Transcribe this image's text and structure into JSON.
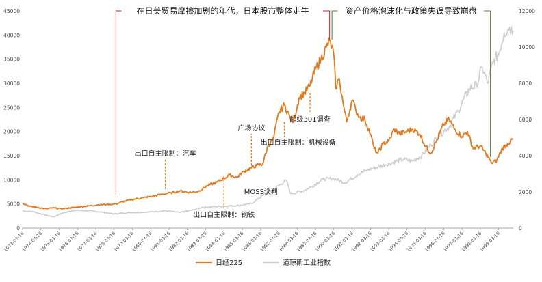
{
  "chart_data": {
    "type": "line",
    "title": "",
    "y_left": {
      "min": 0,
      "max": 45000,
      "ticks": [
        0,
        5000,
        10000,
        15000,
        20000,
        25000,
        30000,
        35000,
        40000,
        45000
      ]
    },
    "y_right": {
      "min": 0,
      "max": 12000,
      "ticks": [
        0,
        2000,
        4000,
        6000,
        8000,
        10000,
        12000
      ]
    },
    "x_range": [
      1973.2,
      2000.0
    ],
    "x_tick_labels": [
      "1973-03-16",
      "1974-03-16",
      "1975-03-16",
      "1976-03-16",
      "1977-03-16",
      "1978-03-16",
      "1979-03-16",
      "1980-03-16",
      "1981-03-16",
      "1982-03-16",
      "1983-03-16",
      "1984-03-16",
      "1985-03-16",
      "1986-03-16",
      "1987-03-16",
      "1988-03-16",
      "1989-03-16",
      "1990-03-16",
      "1991-03-16",
      "1992-03-16",
      "1993-03-16",
      "1994-03-16",
      "1995-03-16",
      "1996-03-16",
      "1997-03-16",
      "1998-03-16",
      "1999-03-16"
    ],
    "series": [
      {
        "name": "日经225",
        "axis": "left",
        "color": "#E07A1F",
        "x": [
          1973.2,
          1973.6,
          1974.0,
          1974.5,
          1974.9,
          1975.3,
          1975.8,
          1976.3,
          1976.8,
          1977.3,
          1977.8,
          1978.3,
          1978.8,
          1979.3,
          1979.8,
          1980.3,
          1980.8,
          1981.3,
          1981.8,
          1982.3,
          1982.8,
          1983.3,
          1983.8,
          1984.2,
          1984.5,
          1984.9,
          1985.3,
          1985.7,
          1986.0,
          1986.3,
          1986.6,
          1986.9,
          1987.2,
          1987.5,
          1987.8,
          1988.0,
          1988.3,
          1988.6,
          1988.9,
          1989.2,
          1989.5,
          1989.8,
          1989.97,
          1990.2,
          1990.3,
          1990.5,
          1990.7,
          1990.9,
          1991.2,
          1991.4,
          1991.6,
          1991.9,
          1992.2,
          1992.4,
          1992.6,
          1992.9,
          1993.2,
          1993.5,
          1993.8,
          1994.2,
          1994.5,
          1994.9,
          1995.2,
          1995.5,
          1995.8,
          1996.2,
          1996.5,
          1996.8,
          1997.2,
          1997.5,
          1997.8,
          1998.2,
          1998.5,
          1998.8,
          1999.1,
          1999.4,
          1999.7,
          2000.0
        ],
        "values": [
          5200,
          4500,
          4300,
          4000,
          4200,
          4000,
          4200,
          4400,
          4600,
          4800,
          4900,
          5000,
          5600,
          6000,
          6300,
          6600,
          7000,
          7300,
          7700,
          7400,
          7600,
          8800,
          9500,
          10300,
          11000,
          10500,
          11800,
          12500,
          13000,
          13200,
          17000,
          18500,
          24000,
          25500,
          23000,
          22000,
          27000,
          28000,
          29500,
          33000,
          35000,
          37500,
          38900,
          36000,
          29000,
          31000,
          26000,
          22000,
          26500,
          24500,
          23000,
          22500,
          19500,
          16500,
          15500,
          17500,
          18000,
          20500,
          19500,
          20000,
          20500,
          19500,
          17000,
          15500,
          18000,
          21500,
          22500,
          20500,
          19000,
          20000,
          16500,
          17000,
          15500,
          13500,
          14000,
          16500,
          17500,
          18500
        ]
      },
      {
        "name": "道琼斯工业指数",
        "axis": "right",
        "color": "#CCCCCC",
        "x": [
          1973.2,
          1973.8,
          1974.5,
          1974.9,
          1975.3,
          1976.0,
          1976.8,
          1977.5,
          1978.2,
          1979.0,
          1980.0,
          1981.0,
          1981.8,
          1982.5,
          1983.0,
          1984.0,
          1985.0,
          1985.7,
          1986.3,
          1987.0,
          1987.6,
          1987.85,
          1988.5,
          1989.0,
          1989.6,
          1990.2,
          1990.8,
          1991.5,
          1992.0,
          1993.0,
          1994.0,
          1994.5,
          1995.0,
          1995.5,
          1996.0,
          1996.5,
          1997.0,
          1997.6,
          1998.0,
          1998.3,
          1998.6,
          1998.9,
          1999.2,
          1999.5,
          1999.8,
          2000.0
        ],
        "values": [
          950,
          900,
          700,
          620,
          800,
          980,
          960,
          880,
          780,
          850,
          880,
          950,
          860,
          1000,
          1150,
          1200,
          1250,
          1350,
          1800,
          2200,
          2650,
          1900,
          2050,
          2300,
          2700,
          2750,
          2500,
          2950,
          3200,
          3500,
          3800,
          3700,
          4000,
          4600,
          5200,
          5600,
          6500,
          7700,
          7900,
          8900,
          8000,
          9200,
          9600,
          10800,
          11100,
          10900
        ]
      }
    ],
    "annotations": {
      "bracket_left_title": "在日美贸易摩擦加剧的年代，日本股市整体走牛",
      "bracket_right_title": "资产价格泡沫化与政策失误导致崩盘",
      "labels": [
        {
          "text": "出口自主限制：汽车",
          "x": 1981.0,
          "value": 8100
        },
        {
          "text": "出口自主限制：钢铁",
          "x": 1984.2,
          "value": 10800
        },
        {
          "text": "MOSS谈判",
          "x": 1985.3,
          "value": 12000
        },
        {
          "text": "广场协议",
          "x": 1985.7,
          "value": 13000
        },
        {
          "text": "出口自主限制：机械设备",
          "x": 1987.5,
          "value": 22000
        },
        {
          "text": "超级301调查",
          "x": 1988.9,
          "value": 28000
        }
      ]
    },
    "legend": {
      "position": "bottom",
      "items": [
        "日经225",
        "道琼斯工业指数"
      ]
    },
    "grid": false
  }
}
